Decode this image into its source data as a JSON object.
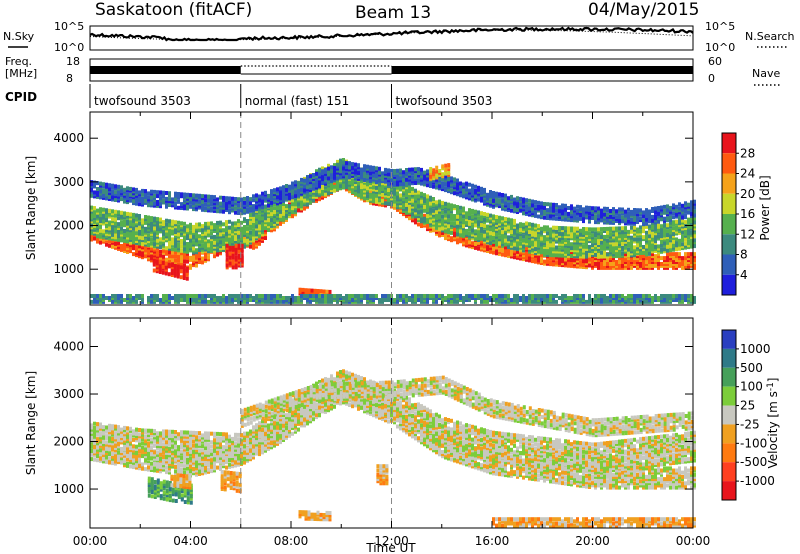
{
  "header": {
    "station": "Saskatoon (fitACF)",
    "beam": "Beam 13",
    "date": "04/May/2015"
  },
  "panels": {
    "nsky_label": "N.Sky",
    "freq_label_1": "Freq.",
    "freq_label_2": "[MHz]",
    "cpid_label": "CPID",
    "nsearch_label": "N.Search",
    "nave_label": "Nave",
    "nsky_ticks": [
      "10^5",
      "10^0"
    ],
    "nsearch_ticks": [
      "10^5",
      "10^0"
    ],
    "freq_ticks": [
      "18",
      "8"
    ],
    "nave_ticks": [
      "60",
      "0"
    ],
    "cpid_segments": [
      {
        "label": "twofsound 3503",
        "start_ut": 0,
        "end_ut": 6
      },
      {
        "label": "normal (fast) 151",
        "start_ut": 6,
        "end_ut": 12
      },
      {
        "label": "twofsound 3503",
        "start_ut": 12,
        "end_ut": 24
      }
    ]
  },
  "chart_data": [
    {
      "type": "heatmap",
      "name": "power",
      "ylabel": "Slant Range [km]",
      "xlabel": "",
      "xlim": [
        0,
        24
      ],
      "ylim": [
        180,
        4600
      ],
      "yticks": [
        "1000",
        "2000",
        "3000",
        "4000"
      ],
      "colorbar_label": "Power [dB]",
      "colorbar_ticks": [
        "4",
        "8",
        "12",
        "16",
        "20",
        "24",
        "28"
      ],
      "colors": [
        "#1f1fdc",
        "#2f5fb8",
        "#3c8a7e",
        "#56b04e",
        "#c8d62a",
        "#f5a21a",
        "#ff5a10",
        "#e8141c"
      ],
      "bands": [
        {
          "center": [
            [
              0,
              1850
            ],
            [
              1,
              1650
            ],
            [
              2,
              1450
            ],
            [
              3,
              1250
            ],
            [
              4,
              1200
            ],
            [
              5,
              1500
            ],
            [
              6,
              1750
            ],
            [
              6.5,
              1650
            ],
            [
              7.5,
              2200
            ],
            [
              9,
              2750
            ],
            [
              10,
              3050
            ],
            [
              11,
              2700
            ],
            [
              12,
              2600
            ],
            [
              13,
              2200
            ],
            [
              14,
              1900
            ],
            [
              15,
              1700
            ],
            [
              16,
              1550
            ],
            [
              18,
              1300
            ],
            [
              20,
              1200
            ],
            [
              22,
              1200
            ],
            [
              24,
              1200
            ]
          ],
          "width": 170,
          "level": 6
        },
        {
          "center": [
            [
              0,
              2100
            ],
            [
              2,
              1900
            ],
            [
              4,
              1700
            ],
            [
              6,
              1800
            ],
            [
              7.5,
              2400
            ],
            [
              9,
              2950
            ],
            [
              10,
              3200
            ],
            [
              11,
              2900
            ],
            [
              12,
              2800
            ],
            [
              13,
              2450
            ],
            [
              14,
              2200
            ],
            [
              16,
              1900
            ],
            [
              18,
              1650
            ],
            [
              20,
              1600
            ],
            [
              22,
              1650
            ],
            [
              24,
              1850
            ]
          ],
          "width": 320,
          "level": 3
        },
        {
          "center": [
            [
              0,
              2850
            ],
            [
              1,
              2750
            ],
            [
              2,
              2650
            ],
            [
              3,
              2600
            ],
            [
              6,
              2450
            ],
            [
              7.5,
              2700
            ],
            [
              9,
              3050
            ],
            [
              10,
              3300
            ],
            [
              12,
              3100
            ],
            [
              13,
              3150
            ],
            [
              14,
              3000
            ],
            [
              16,
              2600
            ],
            [
              18,
              2350
            ],
            [
              20,
              2250
            ],
            [
              22,
              2200
            ],
            [
              24,
              2400
            ]
          ],
          "width": 170,
          "level": 1
        },
        {
          "center": [
            [
              2.5,
              1100
            ],
            [
              3.2,
              1000
            ],
            [
              3.9,
              900
            ]
          ],
          "width": 130,
          "level": 7
        },
        {
          "center": [
            [
              5.4,
              1300
            ],
            [
              6,
              1300
            ]
          ],
          "width": 260,
          "level": 7
        },
        {
          "center": [
            [
              8.3,
              500
            ],
            [
              9.5,
              450
            ]
          ],
          "width": 60,
          "level": 6
        },
        {
          "center": [
            [
              13.5,
              3200
            ],
            [
              14.3,
              3300
            ]
          ],
          "width": 130,
          "level": 5
        },
        {
          "center": [
            [
              0,
              330
            ],
            [
              24,
              330
            ]
          ],
          "width": 80,
          "level": 2
        }
      ]
    },
    {
      "type": "heatmap",
      "name": "velocity",
      "ylabel": "Slant Range [km]",
      "xlabel": "Time UT",
      "xlim": [
        0,
        24
      ],
      "ylim": [
        180,
        4600
      ],
      "xticks": [
        "00:00",
        "04:00",
        "08:00",
        "12:00",
        "16:00",
        "20:00",
        "00:00"
      ],
      "yticks": [
        "1000",
        "2000",
        "3000",
        "4000"
      ],
      "colorbar_label": "Velocity [m s-1]",
      "colorbar_ticks": [
        "1000",
        "500",
        "100",
        "25",
        "-25",
        "-100",
        "-500",
        "-1000"
      ],
      "colors": [
        "#2a3fc0",
        "#2f7a88",
        "#46a05a",
        "#7ccd3a",
        "#c8c8c0",
        "#f0a020",
        "#ff7a10",
        "#ff4020",
        "#e8141c"
      ],
      "bands": [
        {
          "center": [
            [
              0,
              1850
            ],
            [
              2,
              1650
            ],
            [
              4,
              1500
            ],
            [
              6,
              1750
            ],
            [
              7.5,
              2200
            ],
            [
              9,
              2750
            ],
            [
              10,
              3050
            ],
            [
              12,
              2600
            ],
            [
              14,
              1900
            ],
            [
              16,
              1550
            ],
            [
              20,
              1250
            ],
            [
              24,
              1250
            ]
          ],
          "width": 220,
          "level": 4
        },
        {
          "center": [
            [
              0,
              2100
            ],
            [
              2,
              1950
            ],
            [
              6,
              1850
            ],
            [
              9,
              2950
            ],
            [
              10,
              3200
            ],
            [
              12,
              2800
            ],
            [
              14,
              2200
            ],
            [
              16,
              1900
            ],
            [
              20,
              1650
            ],
            [
              24,
              1900
            ]
          ],
          "width": 300,
          "level": 4
        },
        {
          "center": [
            [
              6,
              2500
            ],
            [
              9,
              3050
            ],
            [
              12,
              3100
            ],
            [
              14,
              3200
            ],
            [
              16,
              2700
            ],
            [
              20,
              2300
            ],
            [
              24,
              2450
            ]
          ],
          "width": 170,
          "level": 4
        },
        {
          "center": [
            [
              2.3,
              1050
            ],
            [
              3.2,
              950
            ],
            [
              4,
              900
            ]
          ],
          "width": 190,
          "level": 2
        },
        {
          "center": [
            [
              3.2,
              1200
            ],
            [
              4,
              1150
            ]
          ],
          "width": 120,
          "level": 5
        },
        {
          "center": [
            [
              5.2,
              1200
            ],
            [
              6,
              1150
            ]
          ],
          "width": 200,
          "level": 5
        },
        {
          "center": [
            [
              8.3,
              450
            ],
            [
              9.5,
              430
            ]
          ],
          "width": 70,
          "level": 5
        },
        {
          "center": [
            [
              11.4,
              1300
            ],
            [
              11.8,
              1300
            ]
          ],
          "width": 180,
          "level": 5
        },
        {
          "center": [
            [
              16,
              300
            ],
            [
              24,
              300
            ]
          ],
          "width": 70,
          "level": 5
        }
      ]
    }
  ]
}
